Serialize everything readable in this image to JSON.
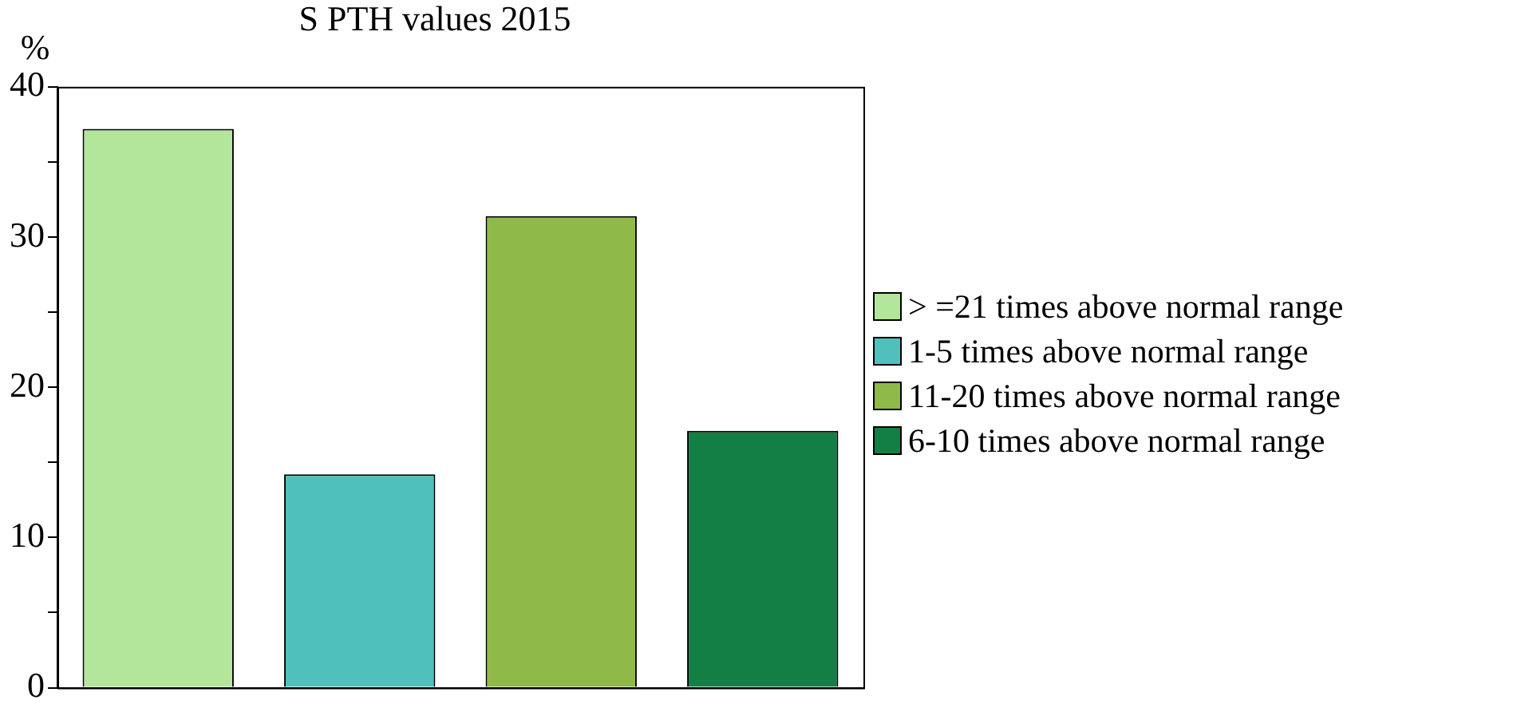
{
  "chart_data": {
    "type": "bar",
    "title": "S PTH values 2015",
    "ylabel": "%",
    "categories": [
      null,
      null,
      null,
      null
    ],
    "series": [
      {
        "name": "> =21 times above normal range",
        "color": "#b3e59a",
        "values": [
          37.2,
          null,
          null,
          null
        ]
      },
      {
        "name": "1-5 times above normal range",
        "color": "#50c0bd",
        "values": [
          null,
          14.2,
          null,
          null
        ]
      },
      {
        "name": "11-20 times above normal range",
        "color": "#8fba48",
        "values": [
          null,
          null,
          31.4,
          null
        ]
      },
      {
        "name": "6-10 times above normal range",
        "color": "#137f45",
        "values": [
          null,
          null,
          null,
          17.1
        ]
      }
    ],
    "ylim": [
      0,
      40
    ],
    "yticks": [
      0,
      {
        "value": 5,
        "label": null
      },
      10,
      {
        "value": 15,
        "label": null
      },
      20,
      {
        "value": 25,
        "label": null
      },
      30,
      {
        "value": 35,
        "label": null
      },
      40
    ],
    "grid": false,
    "legend": "right"
  }
}
